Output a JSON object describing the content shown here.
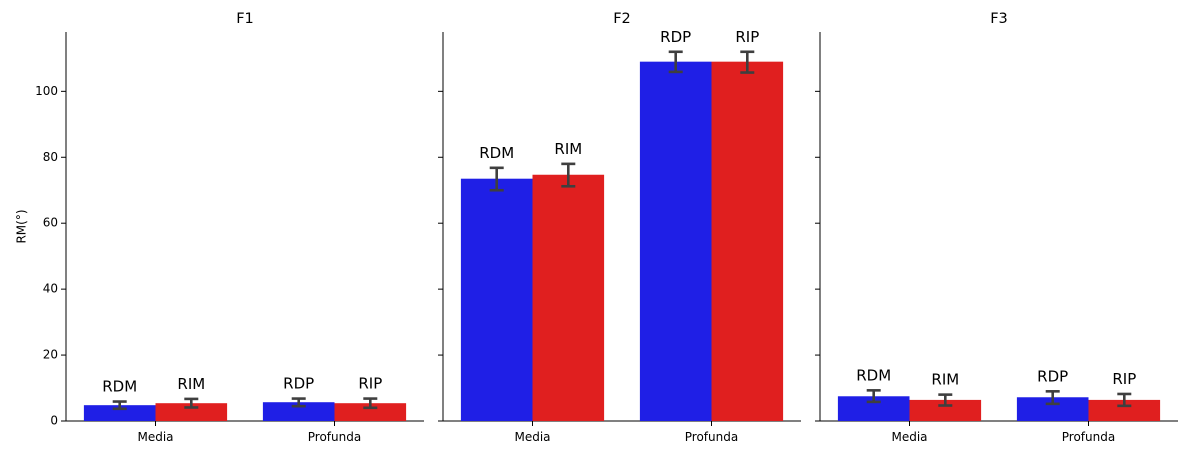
{
  "chart_data": {
    "type": "bar",
    "ylabel": "RM(°)",
    "ylim": [
      0,
      118
    ],
    "yticks": [
      0,
      20,
      40,
      60,
      80,
      100
    ],
    "categories": [
      "Media",
      "Profunda"
    ],
    "colors": {
      "left": "#1f1fe6",
      "right": "#e01f1f",
      "error": "#3f3f3f"
    },
    "panels": [
      {
        "title": "F1",
        "bars": [
          {
            "category": "Media",
            "label": "RDM",
            "color": "left",
            "value": 4.8,
            "err_low": 3.7,
            "err_high": 5.9
          },
          {
            "category": "Media",
            "label": "RIM",
            "color": "right",
            "value": 5.4,
            "err_low": 4.1,
            "err_high": 6.7
          },
          {
            "category": "Profunda",
            "label": "RDP",
            "color": "left",
            "value": 5.7,
            "err_low": 4.5,
            "err_high": 6.8
          },
          {
            "category": "Profunda",
            "label": "RIP",
            "color": "right",
            "value": 5.4,
            "err_low": 4.0,
            "err_high": 6.8
          }
        ]
      },
      {
        "title": "F2",
        "bars": [
          {
            "category": "Media",
            "label": "RDM",
            "color": "left",
            "value": 73.5,
            "err_low": 70.0,
            "err_high": 76.8
          },
          {
            "category": "Media",
            "label": "RIM",
            "color": "right",
            "value": 74.7,
            "err_low": 71.2,
            "err_high": 78.0
          },
          {
            "category": "Profunda",
            "label": "RDP",
            "color": "left",
            "value": 109.0,
            "err_low": 105.9,
            "err_high": 112.0
          },
          {
            "category": "Profunda",
            "label": "RIP",
            "color": "right",
            "value": 109.0,
            "err_low": 105.7,
            "err_high": 112.0
          }
        ]
      },
      {
        "title": "F3",
        "bars": [
          {
            "category": "Media",
            "label": "RDM",
            "color": "left",
            "value": 7.5,
            "err_low": 5.8,
            "err_high": 9.3
          },
          {
            "category": "Media",
            "label": "RIM",
            "color": "right",
            "value": 6.4,
            "err_low": 4.7,
            "err_high": 8.0
          },
          {
            "category": "Profunda",
            "label": "RDP",
            "color": "left",
            "value": 7.2,
            "err_low": 5.2,
            "err_high": 9.0
          },
          {
            "category": "Profunda",
            "label": "RIP",
            "color": "right",
            "value": 6.4,
            "err_low": 4.6,
            "err_high": 8.2
          }
        ]
      }
    ]
  }
}
